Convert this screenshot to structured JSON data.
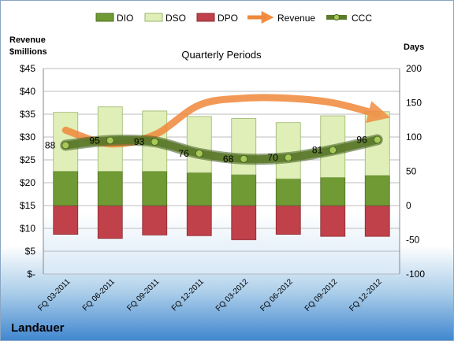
{
  "company": "Landauer",
  "chart_data": {
    "type": "bar",
    "title": "Quarterly Periods",
    "left_axis_label": [
      "Revenue",
      "$millions"
    ],
    "right_axis_label": "Days",
    "left_ticks": [
      "$-",
      "$5",
      "$10",
      "$15",
      "$20",
      "$25",
      "$30",
      "$35",
      "$40",
      "$45"
    ],
    "right_ticks": [
      "-100",
      "-50",
      "0",
      "50",
      "100",
      "150",
      "200"
    ],
    "left_range": [
      0,
      45
    ],
    "right_range": [
      -100,
      200
    ],
    "categories": [
      "FQ 03-2011",
      "FQ 06-2011",
      "FQ 09-2011",
      "FQ 12-2011",
      "FQ 03-2012",
      "FQ 06-2012",
      "FQ 09-2012",
      "FQ 12-2012"
    ],
    "legend": [
      "DIO",
      "DSO",
      "DPO",
      "Revenue",
      "CCC"
    ],
    "legend_position": "top",
    "grid": true,
    "series": [
      {
        "name": "DIO",
        "axis": "right",
        "color": "#6f9a34",
        "values": [
          50,
          50,
          50,
          48,
          45,
          39,
          41,
          44
        ]
      },
      {
        "name": "DSO",
        "axis": "right",
        "color": "#e0efb8",
        "values": [
          86,
          94,
          88,
          82,
          82,
          82,
          90,
          93
        ]
      },
      {
        "name": "DPO",
        "axis": "right",
        "color": "#c0414a",
        "values": [
          -42,
          -48,
          -43,
          -44,
          -50,
          -42,
          -45,
          -45
        ]
      },
      {
        "name": "Revenue",
        "axis": "left",
        "color": "#f0883a",
        "values": [
          31.5,
          28.5,
          30.5,
          37,
          38.5,
          38.5,
          37.5,
          35
        ]
      },
      {
        "name": "CCC",
        "axis": "right",
        "color": "#5b7a2a",
        "values": [
          88,
          95,
          93,
          76,
          68,
          70,
          81,
          96
        ],
        "labels": [
          "88",
          "95",
          "93",
          "76",
          "68",
          "70",
          "81",
          "96"
        ]
      }
    ]
  }
}
